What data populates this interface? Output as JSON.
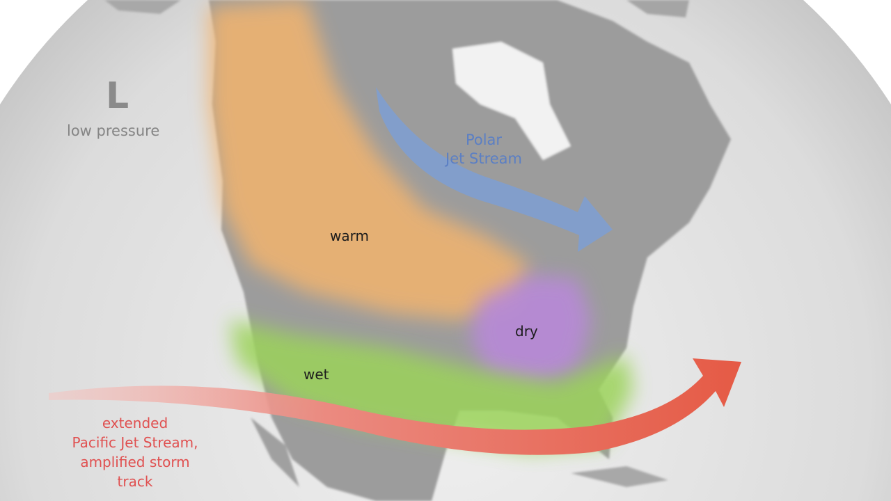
{
  "map": {
    "pressure": {
      "symbol": "L",
      "label": "low pressure"
    },
    "polar_jet": {
      "line1": "Polar",
      "line2": "Jet Stream",
      "color": "#7f9fd0"
    },
    "regions": {
      "warm": "warm",
      "dry": "dry",
      "wet": "wet"
    },
    "region_colors": {
      "warm": "#f2b46e",
      "dry": "#b889d8",
      "wet": "#9bd35a"
    },
    "pacific_jet": {
      "line1": "extended",
      "line2": "Pacific Jet Stream,",
      "line3": "amplified storm",
      "line4": "track",
      "color": "#e8604c"
    }
  }
}
